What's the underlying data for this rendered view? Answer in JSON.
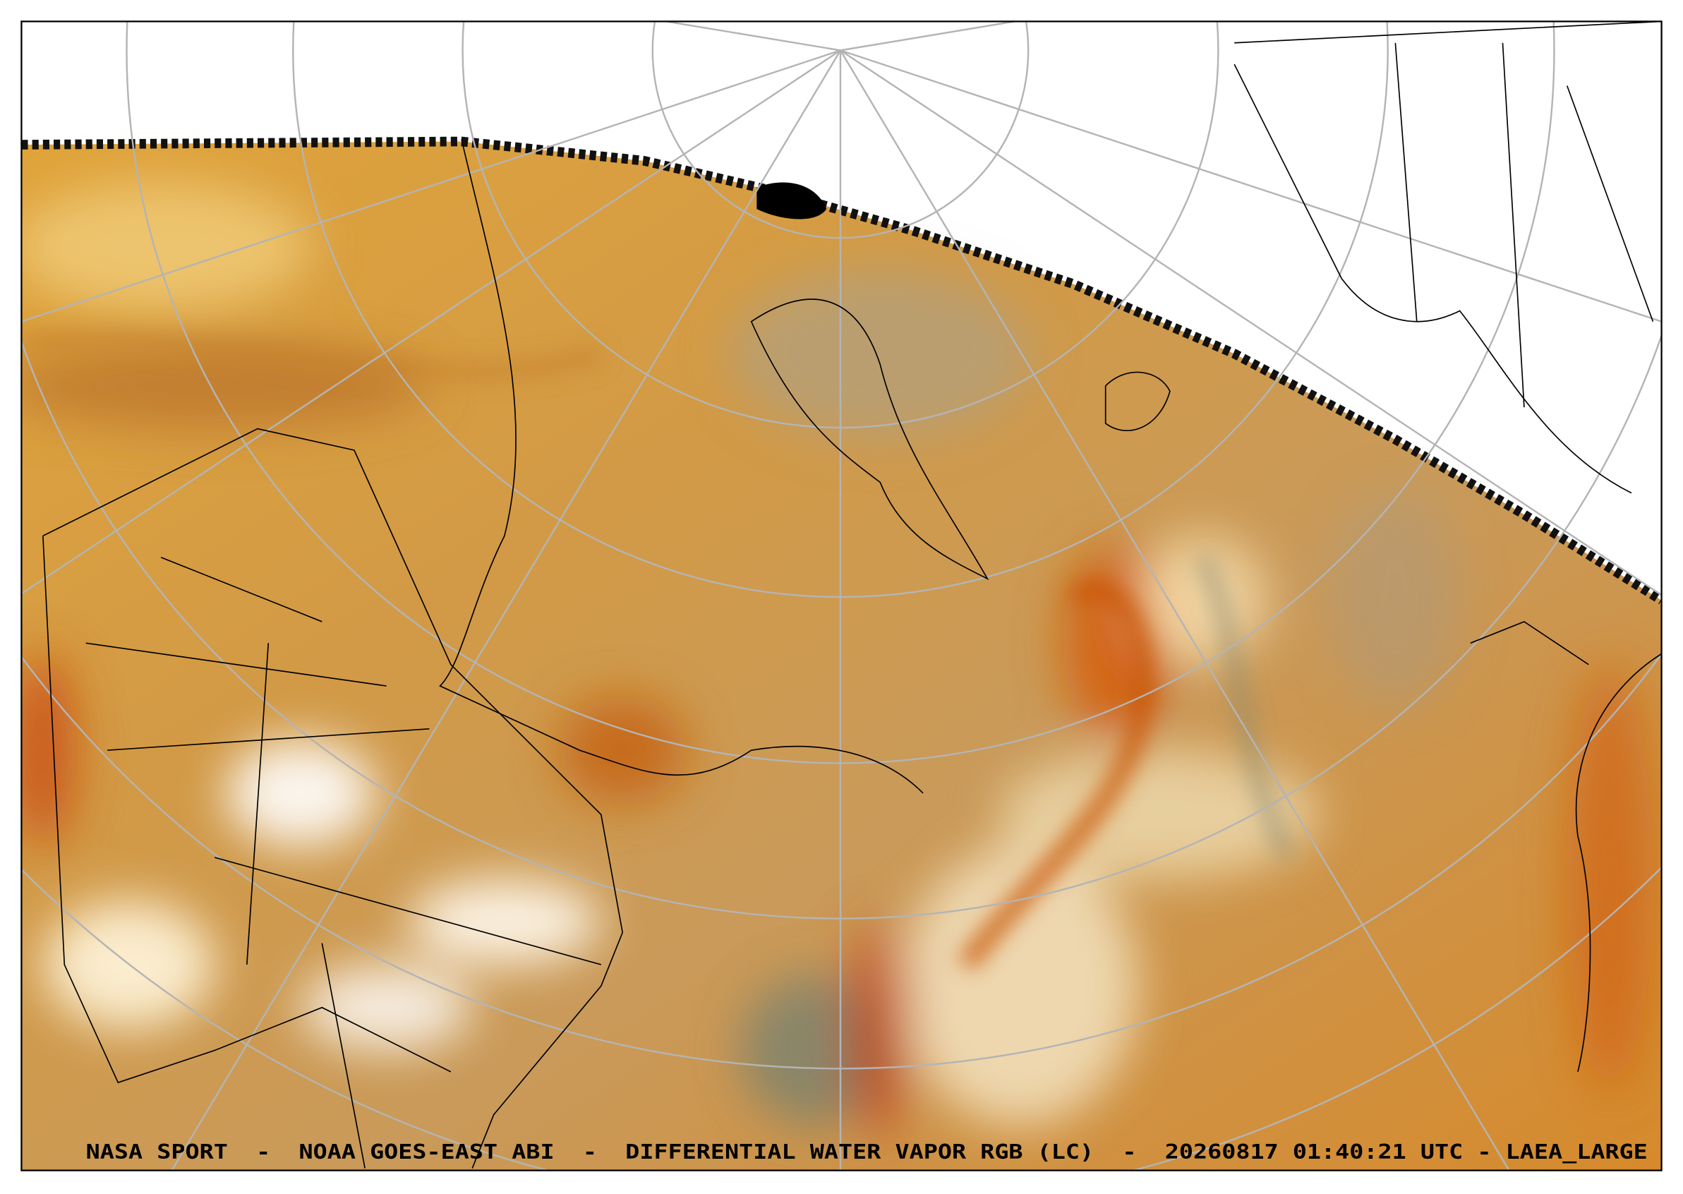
{
  "caption": "NASA SPORT  -  NOAA GOES-EAST ABI  -  DIFFERENTIAL WATER VAPOR RGB (LC)  -  20260817 01:40:21 UTC - LAEA_LARGE"
}
